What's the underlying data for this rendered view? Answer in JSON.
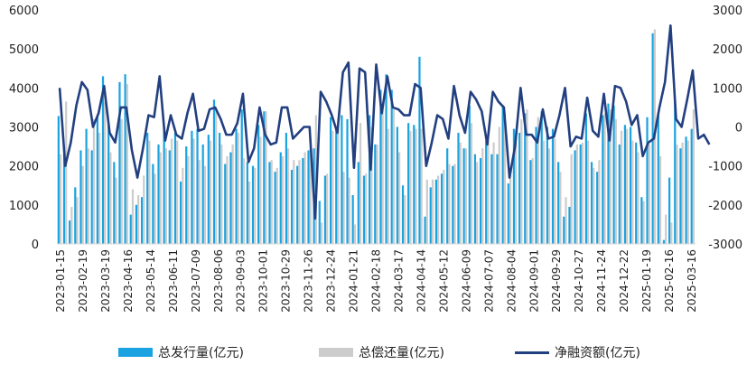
{
  "chart_data": {
    "type": "bar",
    "title": "",
    "xlabel": "",
    "ylabel": "",
    "ylabel_right": "",
    "ylim_left": [
      0,
      6000
    ],
    "ylim_right": [
      -3000,
      3000
    ],
    "yticks_left": [
      "0",
      "1000",
      "2000",
      "3000",
      "4000",
      "5000",
      "6000"
    ],
    "yticks_right": [
      "-3000",
      "-2000",
      "-1000",
      "0",
      "1000",
      "2000",
      "3000"
    ],
    "x_tick_labels": [
      "2023-01-15",
      "2023-02-19",
      "2023-03-19",
      "2023-04-16",
      "2023-05-14",
      "2023-06-11",
      "2023-07-09",
      "2023-08-06",
      "2023-09-03",
      "2023-10-01",
      "2023-10-29",
      "2023-11-26",
      "2023-12-24",
      "2024-01-21",
      "2024-02-18",
      "2024-03-17",
      "2024-04-14",
      "2024-05-12",
      "2024-06-09",
      "2024-07-07",
      "2024-08-04",
      "2024-09-01",
      "2024-09-29",
      "2024-10-27",
      "2024-11-24",
      "2024-12-22",
      "2025-01-19",
      "2025-02-16",
      "2025-03-16"
    ],
    "grid": false,
    "legend_position": "bottom",
    "colors": {
      "issuance": "#1aa3e0",
      "repayment": "#cccccc",
      "net": "#223f80"
    },
    "series": [
      {
        "name": "总发行量(亿元)",
        "type": "bar",
        "axis": "left",
        "values": [
          3280,
          2300,
          600,
          1450,
          2400,
          2950,
          2400,
          3300,
          4300,
          3100,
          2100,
          4150,
          4350,
          750,
          1000,
          1200,
          2850,
          2050,
          2550,
          3000,
          2400,
          2850,
          1600,
          2500,
          2900,
          2950,
          2550,
          2800,
          3700,
          2850,
          2050,
          2350,
          2950,
          3450,
          2100,
          2000,
          3050,
          3400,
          2100,
          1850,
          2350,
          2850,
          1900,
          2000,
          2200,
          2400,
          2450,
          1100,
          1750,
          3250,
          2950,
          3300,
          3200,
          1250,
          2100,
          1750,
          3300,
          2550,
          3950,
          4350,
          3950,
          3000,
          1500,
          3100,
          3050,
          4800,
          700,
          1450,
          1650,
          1800,
          2450,
          2000,
          2850,
          2450,
          3550,
          2300,
          2200,
          2650,
          2300,
          2300,
          3550,
          1550,
          2950,
          2850,
          3350,
          2150,
          3000,
          3400,
          3000,
          2950,
          2100,
          700,
          950,
          2400,
          2550,
          3350,
          2100,
          1850,
          3300,
          3600,
          3550,
          2550,
          3050,
          3000,
          2600,
          1200,
          3250,
          5400,
          3350,
          100,
          1700,
          3650,
          2450,
          2750,
          2950
        ],
        "note": ""
      },
      {
        "name": "总偿还量(亿元)",
        "type": "bar",
        "axis": "left",
        "values": [
          2300,
          3650,
          950,
          1200,
          2000,
          2450,
          3200,
          2850,
          3650,
          2350,
          1700,
          3200,
          4100,
          1400,
          1250,
          1750,
          2650,
          1800,
          2350,
          2450,
          2700,
          2650,
          1950,
          2250,
          2700,
          2150,
          2000,
          2650,
          3400,
          2550,
          2250,
          2550,
          2850,
          2200,
          1600,
          1950,
          2750,
          3400,
          2150,
          1950,
          2250,
          2450,
          2150,
          2150,
          2350,
          2450,
          3300,
          550,
          1800,
          2900,
          3200,
          1850,
          1700,
          500,
          3100,
          1800,
          3000,
          2550,
          3600,
          2950,
          3450,
          2350,
          1250,
          2900,
          2950,
          2950,
          1650,
          1650,
          1750,
          1900,
          2050,
          2050,
          2600,
          2450,
          3100,
          2100,
          2450,
          2650,
          2600,
          3000,
          3350,
          1900,
          2700,
          3200,
          3450,
          2200,
          3250,
          2650,
          2450,
          2700,
          1850,
          1200,
          2300,
          2550,
          2600,
          2650,
          1950,
          2150,
          3350,
          3450,
          3200,
          2900,
          2950,
          2650,
          2350,
          1100,
          2550,
          5500,
          2250,
          750,
          550,
          2550,
          2600,
          2650,
          3450
        ]
      },
      {
        "name": "净融资额(亿元)",
        "type": "line",
        "axis": "right",
        "values": [
          1000,
          -1000,
          -400,
          550,
          1150,
          950,
          0,
          350,
          1050,
          -150,
          -400,
          500,
          500,
          -600,
          -1300,
          -550,
          300,
          250,
          1300,
          -350,
          300,
          -200,
          -300,
          350,
          850,
          -100,
          -50,
          450,
          500,
          200,
          -200,
          -200,
          100,
          850,
          -900,
          -550,
          500,
          -200,
          -450,
          -400,
          500,
          500,
          -300,
          -150,
          0,
          0,
          -2350,
          900,
          650,
          300,
          -150,
          1400,
          1650,
          -1050,
          1500,
          1400,
          -1100,
          1600,
          350,
          1300,
          500,
          450,
          300,
          300,
          1100,
          1000,
          -1000,
          -400,
          300,
          200,
          -300,
          1050,
          300,
          -150,
          900,
          700,
          400,
          -450,
          900,
          650,
          500,
          -1300,
          -500,
          1000,
          -200,
          -200,
          -400,
          450,
          -300,
          -250,
          300,
          1000,
          -500,
          -250,
          -300,
          750,
          -100,
          -250,
          850,
          -350,
          1050,
          1000,
          650,
          50,
          300,
          -750,
          -400,
          -300,
          500,
          1150,
          2600,
          200,
          0,
          700,
          1450,
          -300,
          -200,
          -450
        ],
        "note": ""
      }
    ]
  }
}
